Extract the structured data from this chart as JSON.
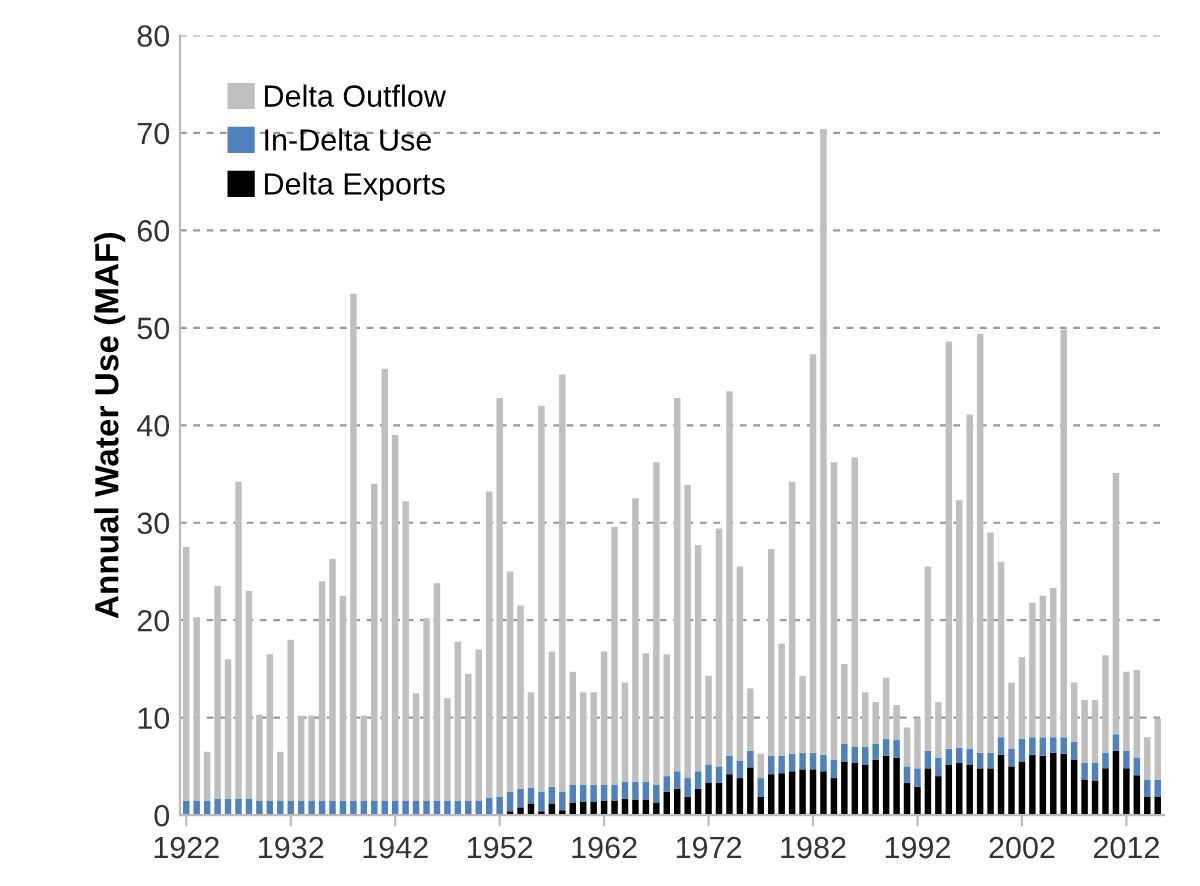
{
  "chart_data": {
    "type": "bar",
    "stacked": true,
    "ylabel": "Annual Water Use (MAF)",
    "x": [
      1922,
      1923,
      1924,
      1925,
      1926,
      1927,
      1928,
      1929,
      1930,
      1931,
      1932,
      1933,
      1934,
      1935,
      1936,
      1937,
      1938,
      1939,
      1940,
      1941,
      1942,
      1943,
      1944,
      1945,
      1946,
      1947,
      1948,
      1949,
      1950,
      1951,
      1952,
      1953,
      1954,
      1955,
      1956,
      1957,
      1958,
      1959,
      1960,
      1961,
      1962,
      1963,
      1964,
      1965,
      1966,
      1967,
      1968,
      1969,
      1970,
      1971,
      1972,
      1973,
      1974,
      1975,
      1976,
      1977,
      1978,
      1979,
      1980,
      1981,
      1982,
      1983,
      1984,
      1985,
      1986,
      1987,
      1988,
      1989,
      1990,
      1991,
      1992,
      1993,
      1994,
      1995,
      1996,
      1997,
      1998,
      1999,
      2000,
      2001,
      2002,
      2003,
      2004,
      2005,
      2006,
      2007,
      2008,
      2009,
      2010,
      2011,
      2012,
      2013,
      2014,
      2015
    ],
    "series": [
      {
        "name": "Delta Exports",
        "color": "#000000",
        "values": [
          0,
          0,
          0,
          0,
          0,
          0,
          0,
          0,
          0,
          0,
          0,
          0,
          0,
          0,
          0,
          0,
          0,
          0,
          0,
          0,
          0,
          0,
          0,
          0,
          0,
          0,
          0,
          0,
          0,
          0,
          0,
          0.4,
          0.8,
          1.2,
          0.4,
          1.2,
          0.5,
          1.3,
          1.4,
          1.4,
          1.5,
          1.5,
          1.7,
          1.6,
          1.6,
          1.3,
          2.4,
          2.7,
          1.9,
          2.7,
          3.3,
          3.3,
          4.2,
          3.8,
          4.9,
          1.9,
          4.2,
          4.3,
          4.5,
          4.7,
          4.7,
          4.5,
          3.8,
          5.5,
          5.4,
          5.2,
          5.7,
          6.1,
          5.9,
          3.3,
          2.9,
          4.8,
          4.0,
          5.2,
          5.4,
          5.2,
          4.8,
          4.8,
          6.2,
          5.0,
          5.5,
          6.2,
          6.1,
          6.4,
          6.3,
          5.7,
          3.6,
          3.5,
          4.8,
          6.6,
          4.8,
          4.1,
          1.9,
          1.9
        ]
      },
      {
        "name": "In-Delta Use",
        "color": "#4f81bd",
        "values": [
          1.5,
          1.5,
          1.5,
          1.7,
          1.7,
          1.7,
          1.7,
          1.5,
          1.5,
          1.5,
          1.5,
          1.5,
          1.5,
          1.5,
          1.5,
          1.5,
          1.5,
          1.5,
          1.5,
          1.5,
          1.5,
          1.5,
          1.5,
          1.5,
          1.5,
          1.5,
          1.5,
          1.5,
          1.5,
          1.8,
          1.9,
          2.0,
          1.9,
          1.6,
          2.0,
          1.7,
          1.9,
          1.8,
          1.7,
          1.7,
          1.6,
          1.6,
          1.7,
          1.8,
          1.8,
          1.8,
          1.6,
          1.8,
          1.9,
          1.8,
          1.9,
          1.7,
          1.9,
          1.8,
          1.7,
          1.9,
          1.9,
          1.8,
          1.8,
          1.7,
          1.7,
          1.7,
          1.9,
          1.8,
          1.6,
          1.8,
          1.6,
          1.7,
          1.8,
          1.7,
          1.9,
          1.8,
          1.9,
          1.6,
          1.5,
          1.6,
          1.6,
          1.6,
          1.8,
          1.8,
          2.3,
          1.8,
          1.9,
          1.6,
          1.7,
          1.8,
          1.8,
          1.9,
          1.6,
          1.7,
          1.8,
          1.8,
          1.7,
          1.7
        ]
      },
      {
        "name": "Delta Outflow",
        "color": "#bfbfbf",
        "values": [
          26.0,
          18.8,
          5.0,
          21.8,
          14.3,
          32.5,
          21.3,
          8.8,
          15.0,
          5.0,
          16.5,
          8.7,
          8.7,
          22.5,
          24.8,
          21.0,
          52.0,
          8.7,
          32.5,
          44.3,
          37.5,
          30.7,
          11.0,
          18.7,
          22.3,
          10.5,
          16.3,
          13.0,
          15.5,
          31.4,
          40.9,
          22.6,
          18.8,
          9.8,
          39.6,
          13.9,
          42.8,
          11.6,
          9.5,
          9.5,
          13.7,
          26.5,
          10.2,
          29.1,
          13.2,
          33.1,
          12.5,
          38.3,
          30.1,
          23.2,
          9.1,
          24.4,
          37.4,
          19.9,
          6.4,
          2.5,
          21.2,
          11.5,
          27.9,
          7.9,
          40.9,
          64.2,
          30.5,
          8.2,
          29.7,
          5.6,
          4.3,
          6.3,
          3.6,
          4.0,
          5.1,
          18.9,
          5.7,
          41.8,
          25.4,
          34.3,
          43.0,
          22.6,
          18.0,
          6.8,
          8.4,
          13.8,
          14.5,
          15.3,
          41.8,
          6.1,
          6.4,
          6.4,
          10.0,
          26.8,
          8.1,
          9.0,
          4.4,
          6.3
        ]
      }
    ],
    "xlim": [
      1921.4,
      2015.6
    ],
    "xticks": [
      1922,
      1932,
      1942,
      1952,
      1962,
      1972,
      1982,
      1992,
      2002,
      2012
    ],
    "ylim": [
      0,
      80
    ],
    "yticks": [
      0,
      10,
      20,
      30,
      40,
      50,
      60,
      70,
      80
    ],
    "grid": "y",
    "legend": "top left"
  }
}
